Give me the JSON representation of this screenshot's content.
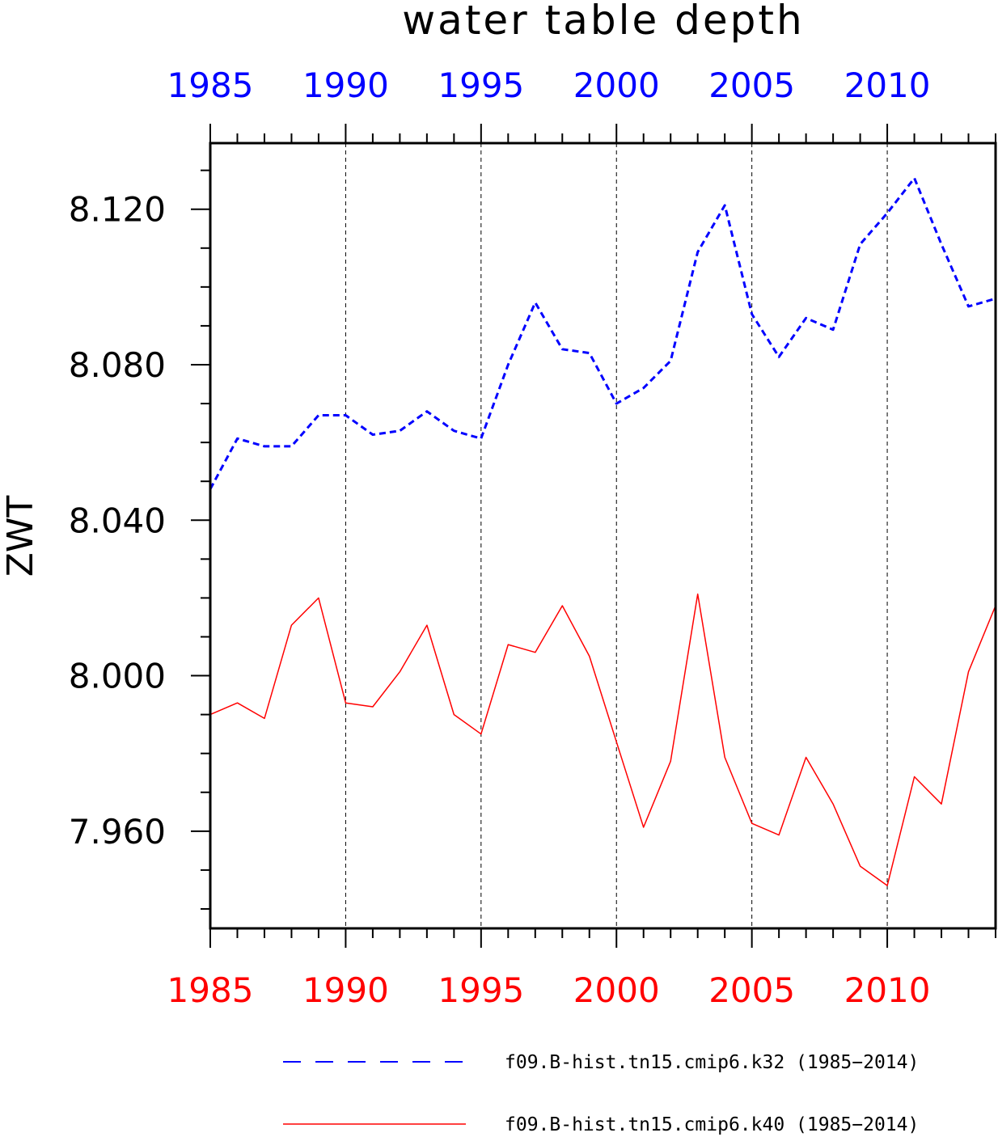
{
  "chart_data": {
    "type": "line",
    "title": "water table depth",
    "ylabel": "ZWT",
    "xlabel": "",
    "xlim": [
      1985,
      2014
    ],
    "ylim": [
      7.935,
      8.137
    ],
    "xticks": [
      1985,
      1990,
      1995,
      2000,
      2005,
      2010
    ],
    "yticks": [
      7.96,
      8.0,
      8.04,
      8.08,
      8.12
    ],
    "ytick_labels": [
      "7.960",
      "8.000",
      "8.040",
      "8.080",
      "8.120"
    ],
    "x_major_grid": "dashed vertical lines at 1990, 1995, 2000, 2005, 2010",
    "top_axis_color": "#0000ff",
    "bottom_axis_color": "#ff0000",
    "x": [
      1985,
      1986,
      1987,
      1988,
      1989,
      1990,
      1991,
      1992,
      1993,
      1994,
      1995,
      1996,
      1997,
      1998,
      1999,
      2000,
      2001,
      2002,
      2003,
      2004,
      2005,
      2006,
      2007,
      2008,
      2009,
      2010,
      2011,
      2012,
      2013,
      2014
    ],
    "series": [
      {
        "name": "f09.B-hist.tn15.cmip6.k32 (1985−2014)",
        "color": "#0000ff",
        "style": "dashed",
        "values": [
          8.048,
          8.061,
          8.059,
          8.059,
          8.067,
          8.067,
          8.062,
          8.063,
          8.068,
          8.063,
          8.061,
          8.08,
          8.096,
          8.084,
          8.083,
          8.07,
          8.074,
          8.081,
          8.109,
          8.121,
          8.093,
          8.082,
          8.092,
          8.089,
          8.111,
          8.119,
          8.128,
          8.111,
          8.095,
          8.097
        ]
      },
      {
        "name": "f09.B-hist.tn15.cmip6.k40 (1985−2014)",
        "color": "#ff0000",
        "style": "solid",
        "values": [
          7.99,
          7.993,
          7.989,
          8.013,
          8.02,
          7.993,
          7.992,
          8.001,
          8.013,
          7.99,
          7.985,
          8.008,
          8.006,
          8.018,
          8.005,
          7.983,
          7.961,
          7.978,
          8.021,
          7.979,
          7.962,
          7.959,
          7.979,
          7.967,
          7.951,
          7.946,
          7.974,
          7.967,
          8.001,
          8.018
        ]
      }
    ],
    "legend_position": "bottom"
  }
}
